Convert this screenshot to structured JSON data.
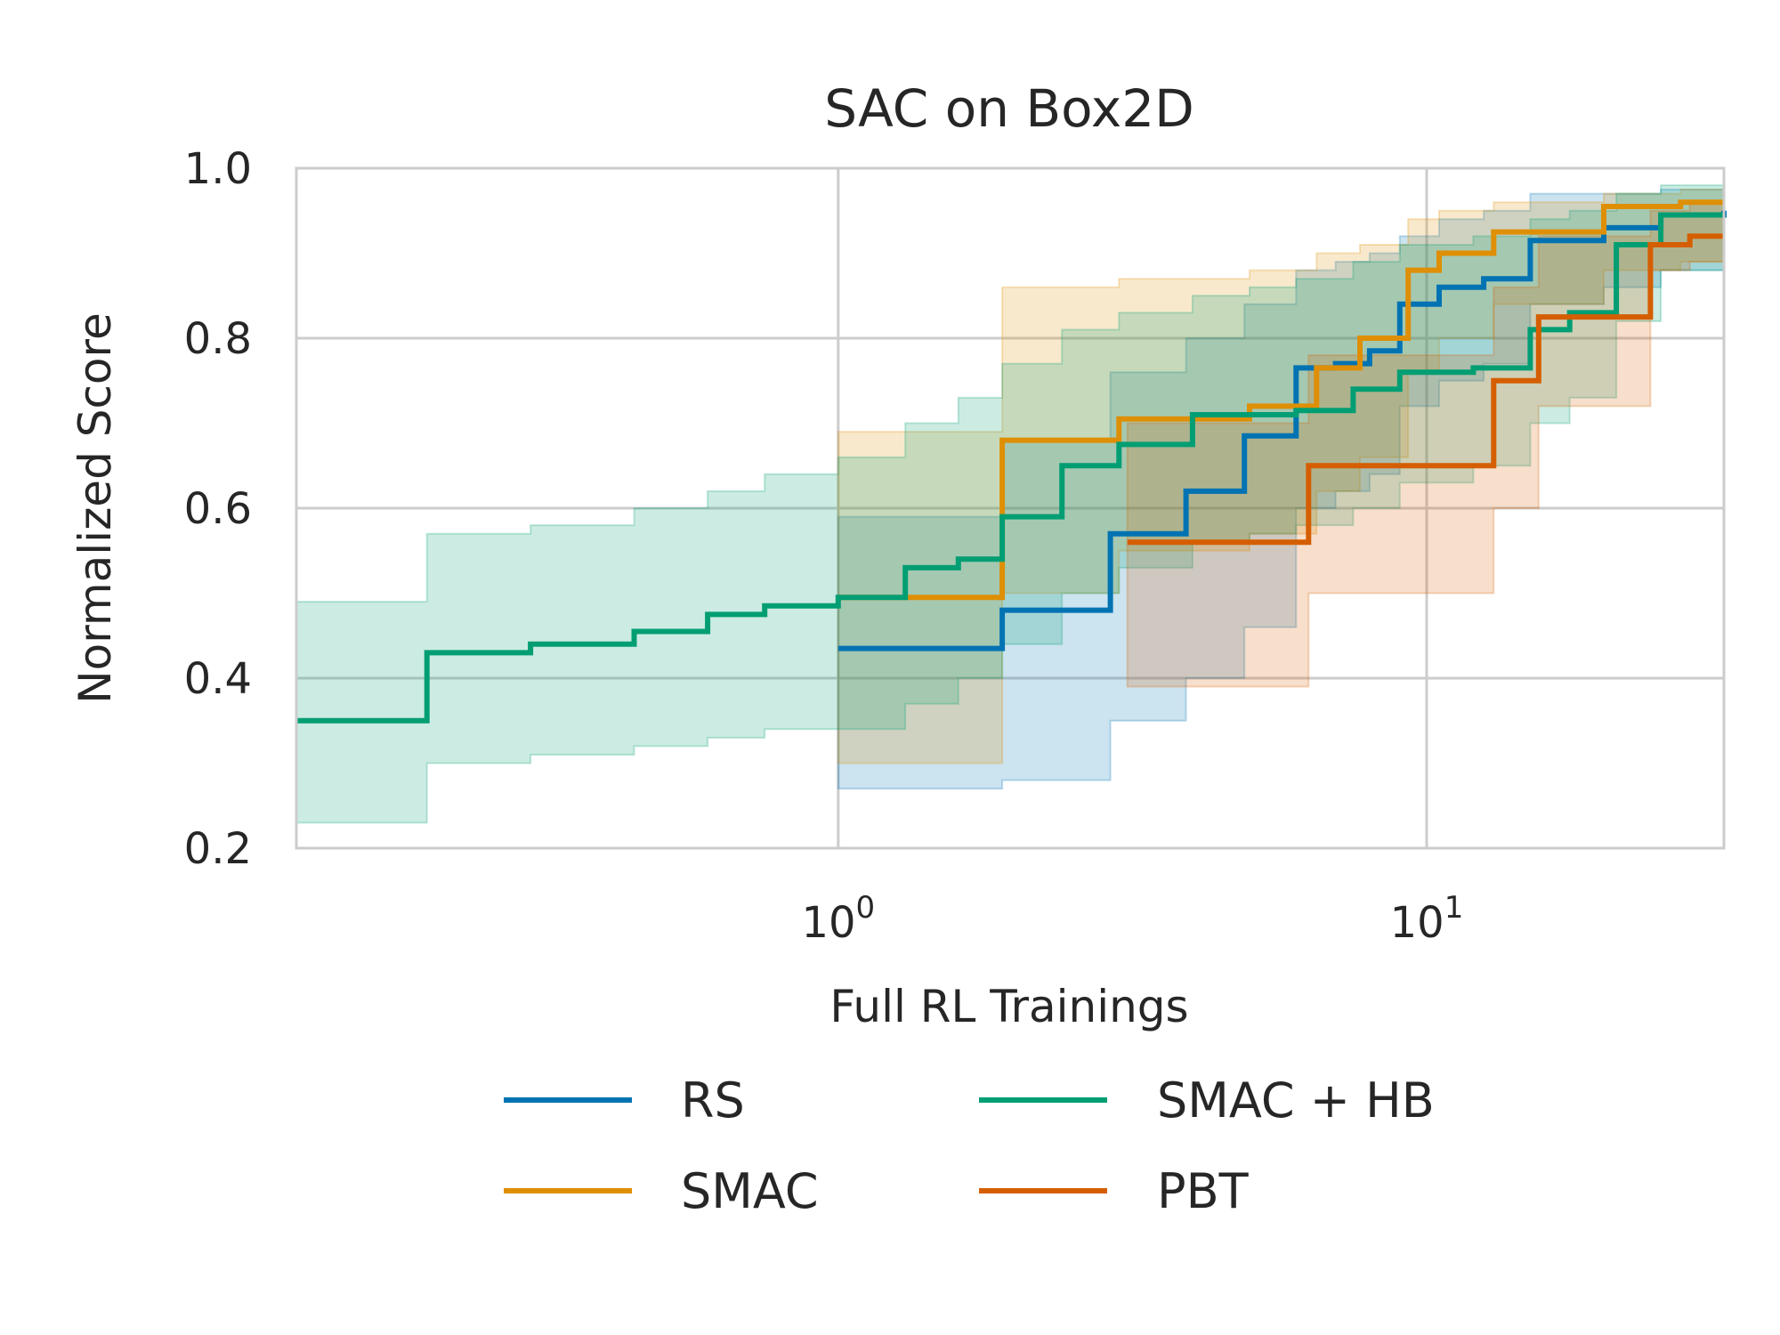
{
  "chart_data": {
    "type": "line",
    "title": "SAC on Box2D",
    "xlabel": "Full RL Trainings",
    "ylabel": "Normalized Score",
    "x_scale": "log",
    "xlim": [
      0.12,
      32
    ],
    "ylim": [
      0.2,
      1.0
    ],
    "grid": true,
    "legend_position": "bottom",
    "legend_columns": 2,
    "y_ticks": [
      "0.2",
      "0.4",
      "0.6",
      "0.8",
      "1.0"
    ],
    "x_ticks": [
      {
        "value": 1,
        "base": "10",
        "exponent": "0"
      },
      {
        "value": 10,
        "base": "10",
        "exponent": "1"
      }
    ],
    "series": [
      {
        "name": "RS",
        "color": "#0173b2",
        "x": [
          1.0,
          1.9,
          2.9,
          3.9,
          4.9,
          6.0,
          7.0,
          8.0,
          9.0,
          10.5,
          12.5,
          15.0,
          20.0,
          25.0,
          32.0
        ],
        "y": [
          0.435,
          0.48,
          0.57,
          0.62,
          0.685,
          0.765,
          0.77,
          0.785,
          0.84,
          0.86,
          0.87,
          0.915,
          0.93,
          0.945,
          0.95
        ],
        "lower": [
          0.27,
          0.28,
          0.35,
          0.4,
          0.46,
          0.6,
          0.62,
          0.64,
          0.72,
          0.75,
          0.77,
          0.84,
          0.86,
          0.88,
          0.88
        ],
        "upper": [
          0.59,
          0.68,
          0.76,
          0.8,
          0.84,
          0.88,
          0.89,
          0.9,
          0.92,
          0.94,
          0.95,
          0.97,
          0.97,
          0.975,
          0.98
        ]
      },
      {
        "name": "SMAC",
        "color": "#de8f05",
        "x": [
          1.0,
          1.9,
          3.0,
          5.0,
          6.5,
          7.7,
          9.3,
          10.5,
          13.0,
          20.0,
          27.0,
          32.0
        ],
        "y": [
          0.495,
          0.68,
          0.705,
          0.72,
          0.765,
          0.8,
          0.88,
          0.9,
          0.925,
          0.955,
          0.96,
          0.96
        ],
        "lower": [
          0.3,
          0.5,
          0.55,
          0.57,
          0.62,
          0.66,
          0.76,
          0.8,
          0.84,
          0.88,
          0.89,
          0.89
        ],
        "upper": [
          0.69,
          0.86,
          0.87,
          0.88,
          0.9,
          0.91,
          0.94,
          0.95,
          0.96,
          0.97,
          0.975,
          0.98
        ]
      },
      {
        "name": "SMAC + HB",
        "color": "#029e73",
        "x": [
          0.12,
          0.2,
          0.3,
          0.45,
          0.6,
          0.75,
          1.0,
          1.3,
          1.6,
          1.9,
          2.4,
          3.0,
          4.0,
          5.0,
          6.0,
          7.5,
          9.0,
          12.0,
          15.0,
          17.5,
          21.0,
          25.0,
          32.0
        ],
        "y": [
          0.35,
          0.43,
          0.44,
          0.455,
          0.475,
          0.485,
          0.495,
          0.53,
          0.54,
          0.59,
          0.65,
          0.675,
          0.71,
          0.71,
          0.715,
          0.74,
          0.76,
          0.765,
          0.81,
          0.83,
          0.91,
          0.945,
          0.945
        ],
        "lower": [
          0.23,
          0.3,
          0.31,
          0.32,
          0.33,
          0.34,
          0.34,
          0.37,
          0.4,
          0.44,
          0.5,
          0.53,
          0.56,
          0.57,
          0.58,
          0.6,
          0.63,
          0.65,
          0.7,
          0.73,
          0.82,
          0.88,
          0.89
        ],
        "upper": [
          0.49,
          0.57,
          0.58,
          0.6,
          0.62,
          0.64,
          0.66,
          0.7,
          0.73,
          0.77,
          0.81,
          0.83,
          0.85,
          0.86,
          0.87,
          0.89,
          0.91,
          0.92,
          0.94,
          0.95,
          0.97,
          0.98,
          0.98
        ]
      },
      {
        "name": "PBT",
        "color": "#d55e00",
        "x": [
          3.1,
          6.3,
          13.0,
          15.5,
          24.0,
          28.0,
          32.0
        ],
        "y": [
          0.56,
          0.65,
          0.75,
          0.825,
          0.91,
          0.92,
          0.92
        ],
        "lower": [
          0.39,
          0.5,
          0.6,
          0.72,
          0.88,
          0.89,
          0.89
        ],
        "upper": [
          0.7,
          0.78,
          0.86,
          0.92,
          0.95,
          0.96,
          0.97
        ]
      }
    ]
  },
  "legend": [
    {
      "label": "RS",
      "color": "#0173b2"
    },
    {
      "label": "SMAC + HB",
      "color": "#029e73"
    },
    {
      "label": "SMAC",
      "color": "#de8f05"
    },
    {
      "label": "PBT",
      "color": "#d55e00"
    }
  ]
}
